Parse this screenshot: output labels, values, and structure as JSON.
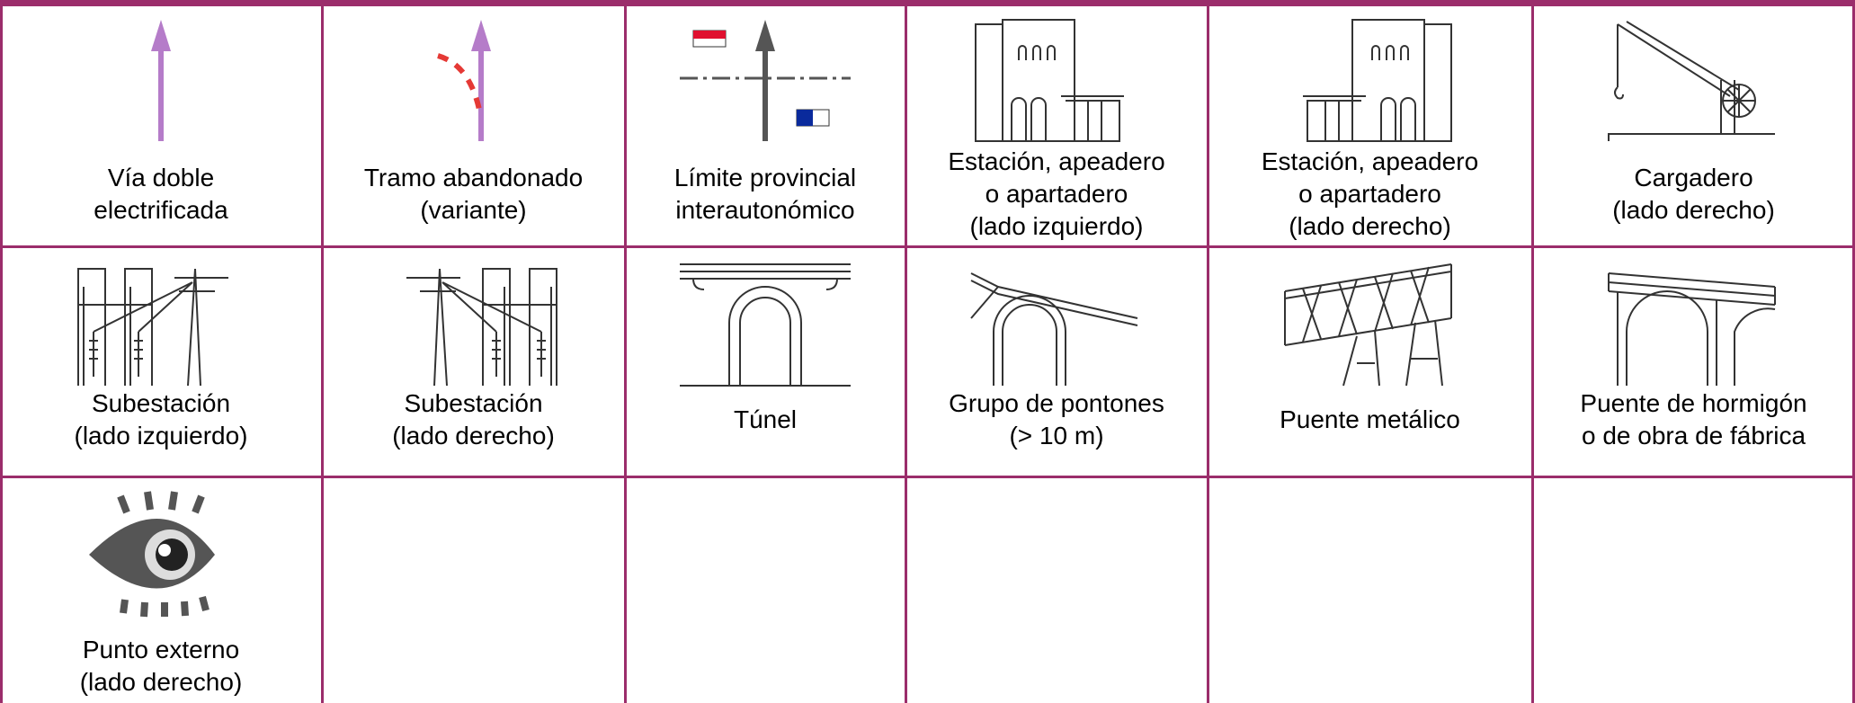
{
  "table": {
    "rows": [
      [
        [
          "Vía doble",
          "electrificada"
        ],
        [
          "Tramo abandonado",
          "(variante)"
        ],
        [
          "Límite provincial",
          "interautonómico"
        ],
        [
          "Estación, apeadero",
          "o apartadero",
          "(lado izquierdo)"
        ],
        [
          "Estación, apeadero",
          "o apartadero",
          "(lado derecho)"
        ],
        [
          "Cargadero",
          "(lado derecho)"
        ]
      ],
      [
        [
          "Subestación",
          "(lado izquierdo)"
        ],
        [
          "Subestación",
          "(lado derecho)"
        ],
        [
          "Túnel"
        ],
        [
          "Grupo de pontones",
          "(> 10 m)"
        ],
        [
          "Puente metálico"
        ],
        [
          "Puente de hormigón",
          "o de obra de fábrica"
        ]
      ],
      [
        [
          "Punto externo",
          "(lado derecho)"
        ]
      ]
    ]
  }
}
